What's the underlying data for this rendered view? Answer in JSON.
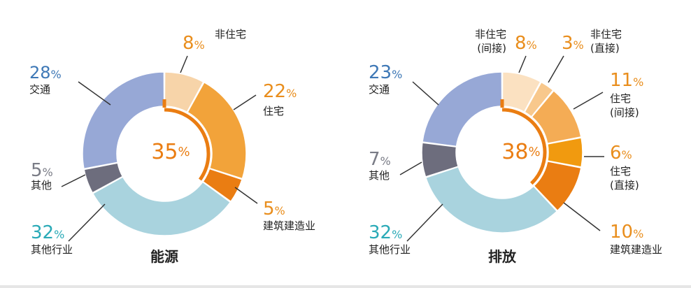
{
  "chart_data": [
    {
      "type": "pie",
      "subtype": "donut",
      "title": "能源",
      "center_label": "35%",
      "slices": [
        {
          "label": "非住宅",
          "value": 8,
          "color": "#f7d4a9"
        },
        {
          "label": "住宅",
          "value": 22,
          "color": "#f2a33a"
        },
        {
          "label": "建筑建造业",
          "value": 5,
          "color": "#ea7d12"
        },
        {
          "label": "其他行业",
          "value": 32,
          "color": "#a9d3de"
        },
        {
          "label": "其他",
          "value": 5,
          "color": "#6d6d7d"
        },
        {
          "label": "交通",
          "value": 28,
          "color": "#97a8d6"
        }
      ],
      "label_colors": {
        "building": "#e98e1d",
        "transport": "#3e78b6",
        "other": "#7a7c86",
        "industry": "#2aaab7"
      }
    },
    {
      "type": "pie",
      "subtype": "donut",
      "title": "排放",
      "center_label": "38%",
      "slices": [
        {
          "label": "非住宅\n(间接)",
          "value": 8,
          "color": "#fbe1c1"
        },
        {
          "label": "非住宅\n(直接)",
          "value": 3,
          "color": "#f8c88c"
        },
        {
          "label": "住宅\n(间接)",
          "value": 11,
          "color": "#f4ac55"
        },
        {
          "label": "住宅\n(直接)",
          "value": 6,
          "color": "#f19a0f"
        },
        {
          "label": "建筑建造业",
          "value": 10,
          "color": "#ea7d12"
        },
        {
          "label": "其他行业",
          "value": 32,
          "color": "#a9d3de"
        },
        {
          "label": "其他",
          "value": 7,
          "color": "#6d6d7d"
        },
        {
          "label": "交通",
          "value": 23,
          "color": "#97a8d6"
        }
      ],
      "label_colors": {
        "building": "#e98e1d",
        "transport": "#3e78b6",
        "other": "#7a7c86",
        "industry": "#2aaab7"
      }
    }
  ]
}
